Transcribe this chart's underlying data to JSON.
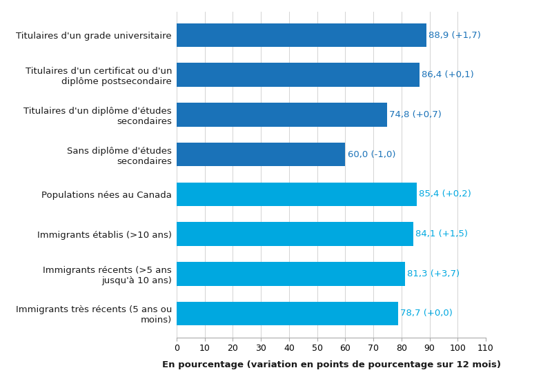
{
  "categories": [
    "Titulaires d'un grade universitaire",
    "Titulaires d'un certificat ou d'un\ndiplôme postsecondaire",
    "Titulaires d'un diplôme d'études\nsecondaires",
    "Sans diplôme d'études\nsecondaires",
    "Populations nées au Canada",
    "Immigrants établis (>10 ans)",
    "Immigrants récents (>5 ans\njusqu'à 10 ans)",
    "Immigrants très récents (5 ans ou\nmoins)"
  ],
  "values": [
    88.9,
    86.4,
    74.8,
    60.0,
    85.4,
    84.1,
    81.3,
    78.7
  ],
  "labels": [
    "88,9 (+1,7)",
    "86,4 (+0,1)",
    "74,8 (+0,7)",
    "60,0 (-1,0)",
    "85,4 (+0,2)",
    "84,1 (+1,5)",
    "81,3 (+3,7)",
    "78,7 (+0,0)"
  ],
  "colors": [
    "#1a72b8",
    "#1a72b8",
    "#1a72b8",
    "#1a72b8",
    "#00a8e0",
    "#00a8e0",
    "#00a8e0",
    "#00a8e0"
  ],
  "label_colors": [
    "#1a72b8",
    "#1a72b8",
    "#1a72b8",
    "#1a72b8",
    "#00a8e0",
    "#00a8e0",
    "#00a8e0",
    "#00a8e0"
  ],
  "xlabel": "En pourcentage (variation en points de pourcentage sur 12 mois)",
  "xlim": [
    0,
    110
  ],
  "xticks": [
    0,
    10,
    20,
    30,
    40,
    50,
    60,
    70,
    80,
    90,
    100,
    110
  ],
  "bar_height": 0.6,
  "figsize": [
    8.0,
    5.5
  ],
  "dpi": 100,
  "label_fontsize": 9.5,
  "xlabel_fontsize": 9.5,
  "tick_fontsize": 9,
  "category_fontsize": 9.5
}
